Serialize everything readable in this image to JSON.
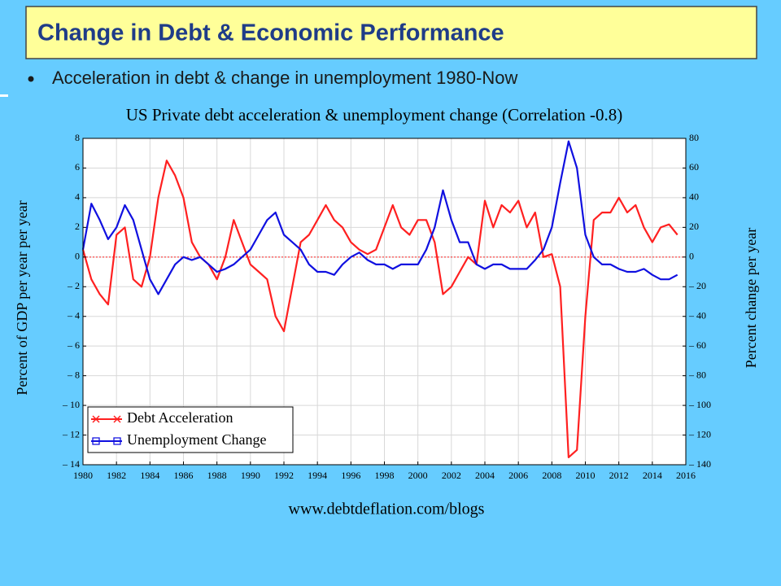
{
  "slide": {
    "title": "Change in Debt & Economic Performance",
    "bullet": "Acceleration in debt & change in unemployment 1980-Now"
  },
  "chart_data": {
    "type": "line",
    "title": "US Private debt acceleration & unemployment change (Correlation -0.8)",
    "ylabel": "Percent of GDP per year per year",
    "y2label": "Percent change per year",
    "source": "www.debtdeflation.com/blogs",
    "grid": true,
    "legend": "lower left",
    "x": [
      1980,
      1980.5,
      1981,
      1981.5,
      1982,
      1982.5,
      1983,
      1983.5,
      1984,
      1984.5,
      1985,
      1985.5,
      1986,
      1986.5,
      1987,
      1987.5,
      1988,
      1988.5,
      1989,
      1989.5,
      1990,
      1990.5,
      1991,
      1991.5,
      1992,
      1992.5,
      1993,
      1993.5,
      1994,
      1994.5,
      1995,
      1995.5,
      1996,
      1996.5,
      1997,
      1997.5,
      1998,
      1998.5,
      1999,
      1999.5,
      2000,
      2000.5,
      2001,
      2001.5,
      2002,
      2002.5,
      2003,
      2003.5,
      2004,
      2004.5,
      2005,
      2005.5,
      2006,
      2006.5,
      2007,
      2007.5,
      2008,
      2008.5,
      2009,
      2009.5,
      2010,
      2010.5,
      2011,
      2011.5,
      2012,
      2012.5,
      2013,
      2013.5,
      2014,
      2014.5,
      2015,
      2015.5
    ],
    "xlim": [
      1980,
      2016
    ],
    "xticks": [
      1980,
      1982,
      1984,
      1986,
      1988,
      1990,
      1992,
      1994,
      1996,
      1998,
      2000,
      2002,
      2004,
      2006,
      2008,
      2010,
      2012,
      2014,
      2016
    ],
    "ylim": [
      -14,
      8
    ],
    "yticks": [
      {
        "value": -14,
        "label": "– 14"
      },
      {
        "value": -12,
        "label": "– 12"
      },
      {
        "value": -10,
        "label": "– 10"
      },
      {
        "value": -8,
        "label": "– 8"
      },
      {
        "value": -6,
        "label": "– 6"
      },
      {
        "value": -4,
        "label": "– 4"
      },
      {
        "value": -2,
        "label": "– 2"
      },
      0,
      2,
      4,
      6,
      8
    ],
    "y2lim": [
      -140,
      80
    ],
    "y2ticks": [
      {
        "value": -140,
        "label": "– 140"
      },
      {
        "value": -120,
        "label": "– 120"
      },
      {
        "value": -100,
        "label": "– 100"
      },
      {
        "value": -80,
        "label": "– 80"
      },
      {
        "value": -60,
        "label": "– 60"
      },
      {
        "value": -40,
        "label": "– 40"
      },
      {
        "value": -20,
        "label": "– 20"
      },
      0,
      20,
      40,
      60,
      80
    ],
    "series": [
      {
        "name": "Debt Acceleration",
        "color": "#ff2020",
        "values": [
          0.5,
          -1.5,
          -2.5,
          -3.2,
          1.5,
          2,
          -1.5,
          -2,
          0,
          4,
          6.5,
          5.5,
          4,
          1,
          0,
          -0.5,
          -1.5,
          0,
          2.5,
          1,
          -0.5,
          -1,
          -1.5,
          -4,
          -5,
          -2,
          1,
          1.5,
          2.5,
          3.5,
          2.5,
          2,
          1,
          0.5,
          0.2,
          0.5,
          2,
          3.5,
          2,
          1.5,
          2.5,
          2.5,
          1,
          -2.5,
          -2,
          -1,
          0,
          -0.5,
          3.8,
          2,
          3.5,
          3,
          3.8,
          2,
          3,
          0,
          0.2,
          -2,
          -13.5,
          -13,
          -4,
          2.5,
          3,
          3,
          4,
          3,
          3.5,
          2,
          1,
          2,
          2.2,
          1.5
        ]
      },
      {
        "name": "Unemployment Change",
        "color": "#1010e0",
        "axis": "y2",
        "values": [
          5,
          36,
          25,
          12,
          20,
          35,
          25,
          5,
          -15,
          -25,
          -15,
          -5,
          0,
          -2,
          0,
          -5,
          -10,
          -8,
          -5,
          0,
          5,
          15,
          25,
          30,
          15,
          10,
          5,
          -5,
          -10,
          -10,
          -12,
          -5,
          0,
          3,
          -2,
          -5,
          -5,
          -8,
          -5,
          -5,
          -5,
          5,
          20,
          45,
          25,
          10,
          10,
          -5,
          -8,
          -5,
          -5,
          -8,
          -8,
          -8,
          -2,
          5,
          20,
          50,
          78,
          60,
          15,
          0,
          -5,
          -5,
          -8,
          -10,
          -10,
          -8,
          -12,
          -15,
          -15,
          -12
        ]
      }
    ]
  }
}
